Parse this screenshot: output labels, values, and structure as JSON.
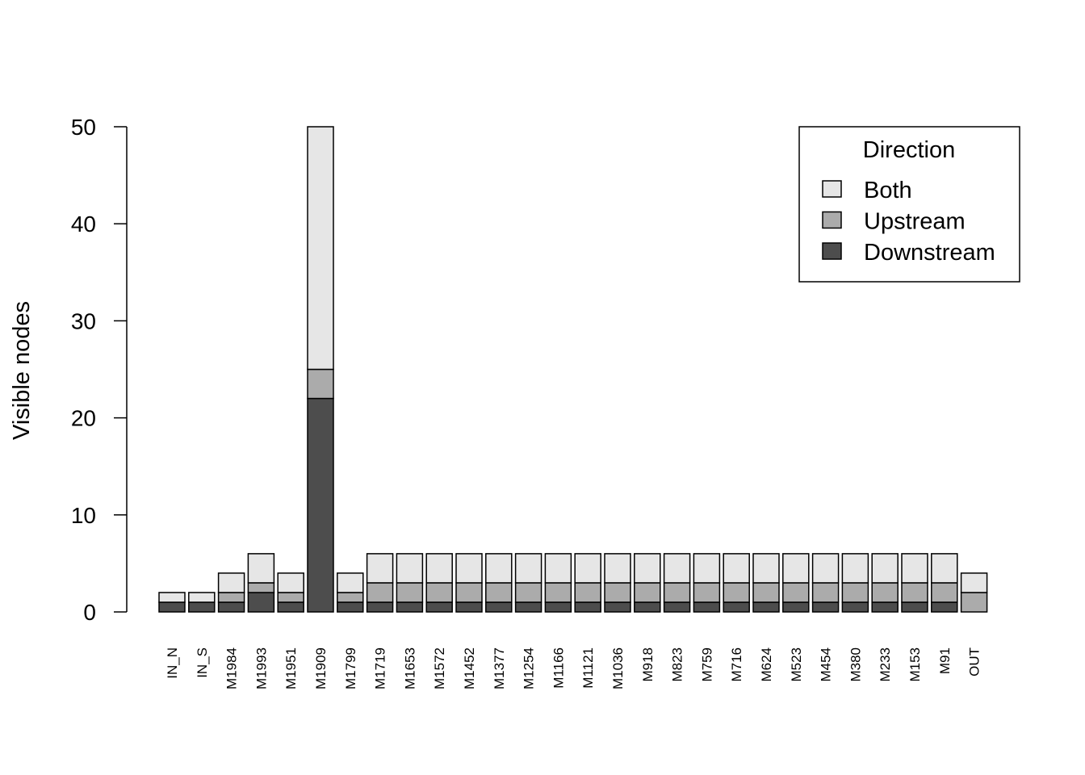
{
  "colors": {
    "Both": "#e6e6e6",
    "Upstream": "#ababab",
    "Downstream": "#4d4d4d",
    "stroke": "#000000"
  },
  "chart_data": {
    "type": "bar",
    "stacked": true,
    "title": "",
    "xlabel": "",
    "ylabel": "Visible nodes",
    "ylim": [
      0,
      50
    ],
    "yticks": [
      0,
      10,
      20,
      30,
      40,
      50
    ],
    "grid": false,
    "legend": {
      "title": "Direction",
      "position": "top-right",
      "entries": [
        "Both",
        "Upstream",
        "Downstream"
      ]
    },
    "categories": [
      "IN_N",
      "IN_S",
      "M1984",
      "M1993",
      "M1951",
      "M1909",
      "M1799",
      "M1719",
      "M1653",
      "M1572",
      "M1452",
      "M1377",
      "M1254",
      "M1166",
      "M1121",
      "M1036",
      "M918",
      "M823",
      "M759",
      "M716",
      "M624",
      "M523",
      "M454",
      "M380",
      "M233",
      "M153",
      "M91",
      "OUT"
    ],
    "series": [
      {
        "name": "Downstream",
        "values": [
          1,
          1,
          1,
          2,
          1,
          22,
          1,
          1,
          1,
          1,
          1,
          1,
          1,
          1,
          1,
          1,
          1,
          1,
          1,
          1,
          1,
          1,
          1,
          1,
          1,
          1,
          1,
          0
        ]
      },
      {
        "name": "Upstream",
        "values": [
          0,
          0,
          1,
          1,
          1,
          3,
          1,
          2,
          2,
          2,
          2,
          2,
          2,
          2,
          2,
          2,
          2,
          2,
          2,
          2,
          2,
          2,
          2,
          2,
          2,
          2,
          2,
          2
        ]
      },
      {
        "name": "Both",
        "values": [
          1,
          1,
          2,
          3,
          2,
          25,
          2,
          3,
          3,
          3,
          3,
          3,
          3,
          3,
          3,
          3,
          3,
          3,
          3,
          3,
          3,
          3,
          3,
          3,
          3,
          3,
          3,
          2
        ]
      }
    ]
  }
}
